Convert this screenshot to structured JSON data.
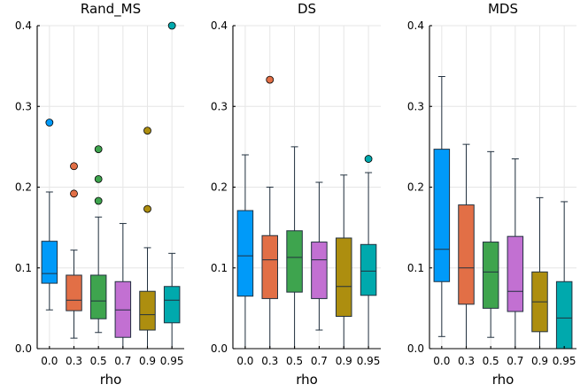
{
  "chart_data": [
    {
      "type": "boxplot",
      "title": "Rand_MS",
      "xlabel": "rho",
      "ylabel": "",
      "ylim": [
        0,
        0.4
      ],
      "yticks": [
        "0.0",
        "0.1",
        "0.2",
        "0.3",
        "0.4"
      ],
      "grid": true,
      "categories": [
        "0.0",
        "0.3",
        "0.5",
        "0.7",
        "0.9",
        "0.95"
      ],
      "series": [
        {
          "name": "0.0",
          "color": "#009af9",
          "min": 0.048,
          "q1": 0.081,
          "median": 0.093,
          "q3": 0.133,
          "max": 0.194,
          "outliers": [
            0.28
          ]
        },
        {
          "name": "0.3",
          "color": "#e26f46",
          "min": 0.013,
          "q1": 0.047,
          "median": 0.06,
          "q3": 0.091,
          "max": 0.122,
          "outliers": [
            0.192,
            0.226
          ]
        },
        {
          "name": "0.5",
          "color": "#3ea44e",
          "min": 0.02,
          "q1": 0.037,
          "median": 0.059,
          "q3": 0.091,
          "max": 0.163,
          "outliers": [
            0.183,
            0.21,
            0.247
          ]
        },
        {
          "name": "0.7",
          "color": "#c270d2",
          "min": 0.0,
          "q1": 0.014,
          "median": 0.048,
          "q3": 0.083,
          "max": 0.155,
          "outliers": []
        },
        {
          "name": "0.9",
          "color": "#ad8e0f",
          "min": 0.0,
          "q1": 0.023,
          "median": 0.042,
          "q3": 0.071,
          "max": 0.125,
          "outliers": [
            0.173,
            0.27
          ]
        },
        {
          "name": "0.95",
          "color": "#00a9ad",
          "min": 0.0,
          "q1": 0.032,
          "median": 0.06,
          "q3": 0.077,
          "max": 0.118,
          "outliers": [
            0.4
          ]
        }
      ]
    },
    {
      "type": "boxplot",
      "title": "DS",
      "xlabel": "rho",
      "ylabel": "",
      "ylim": [
        0,
        0.4
      ],
      "yticks": [
        "0.0",
        "0.1",
        "0.2",
        "0.3",
        "0.4"
      ],
      "grid": true,
      "categories": [
        "0.0",
        "0.3",
        "0.5",
        "0.7",
        "0.9",
        "0.95"
      ],
      "series": [
        {
          "name": "0.0",
          "color": "#009af9",
          "min": 0.0,
          "q1": 0.065,
          "median": 0.115,
          "q3": 0.171,
          "max": 0.24,
          "outliers": []
        },
        {
          "name": "0.3",
          "color": "#e26f46",
          "min": 0.0,
          "q1": 0.062,
          "median": 0.11,
          "q3": 0.14,
          "max": 0.2,
          "outliers": [
            0.333
          ]
        },
        {
          "name": "0.5",
          "color": "#3ea44e",
          "min": 0.0,
          "q1": 0.07,
          "median": 0.113,
          "q3": 0.146,
          "max": 0.25,
          "outliers": []
        },
        {
          "name": "0.7",
          "color": "#c270d2",
          "min": 0.023,
          "q1": 0.062,
          "median": 0.11,
          "q3": 0.132,
          "max": 0.206,
          "outliers": []
        },
        {
          "name": "0.9",
          "color": "#ad8e0f",
          "min": 0.0,
          "q1": 0.04,
          "median": 0.077,
          "q3": 0.137,
          "max": 0.215,
          "outliers": []
        },
        {
          "name": "0.95",
          "color": "#00a9ad",
          "min": 0.0,
          "q1": 0.066,
          "median": 0.096,
          "q3": 0.129,
          "max": 0.218,
          "outliers": [
            0.235
          ]
        }
      ]
    },
    {
      "type": "boxplot",
      "title": "MDS",
      "xlabel": "rho",
      "ylabel": "",
      "ylim": [
        0,
        0.4
      ],
      "yticks": [
        "0.0",
        "0.1",
        "0.2",
        "0.3",
        "0.4"
      ],
      "grid": true,
      "categories": [
        "0.0",
        "0.3",
        "0.5",
        "0.7",
        "0.9",
        "0.95"
      ],
      "series": [
        {
          "name": "0.0",
          "color": "#009af9",
          "min": 0.015,
          "q1": 0.083,
          "median": 0.123,
          "q3": 0.247,
          "max": 0.337,
          "outliers": []
        },
        {
          "name": "0.3",
          "color": "#e26f46",
          "min": 0.0,
          "q1": 0.055,
          "median": 0.1,
          "q3": 0.178,
          "max": 0.253,
          "outliers": []
        },
        {
          "name": "0.5",
          "color": "#3ea44e",
          "min": 0.014,
          "q1": 0.05,
          "median": 0.095,
          "q3": 0.132,
          "max": 0.244,
          "outliers": []
        },
        {
          "name": "0.7",
          "color": "#c270d2",
          "min": 0.0,
          "q1": 0.046,
          "median": 0.071,
          "q3": 0.139,
          "max": 0.235,
          "outliers": []
        },
        {
          "name": "0.9",
          "color": "#ad8e0f",
          "min": 0.0,
          "q1": 0.021,
          "median": 0.058,
          "q3": 0.095,
          "max": 0.187,
          "outliers": []
        },
        {
          "name": "0.95",
          "color": "#00a9ad",
          "min": 0.0,
          "q1": 0.0,
          "median": 0.038,
          "q3": 0.083,
          "max": 0.182,
          "outliers": []
        }
      ]
    }
  ]
}
